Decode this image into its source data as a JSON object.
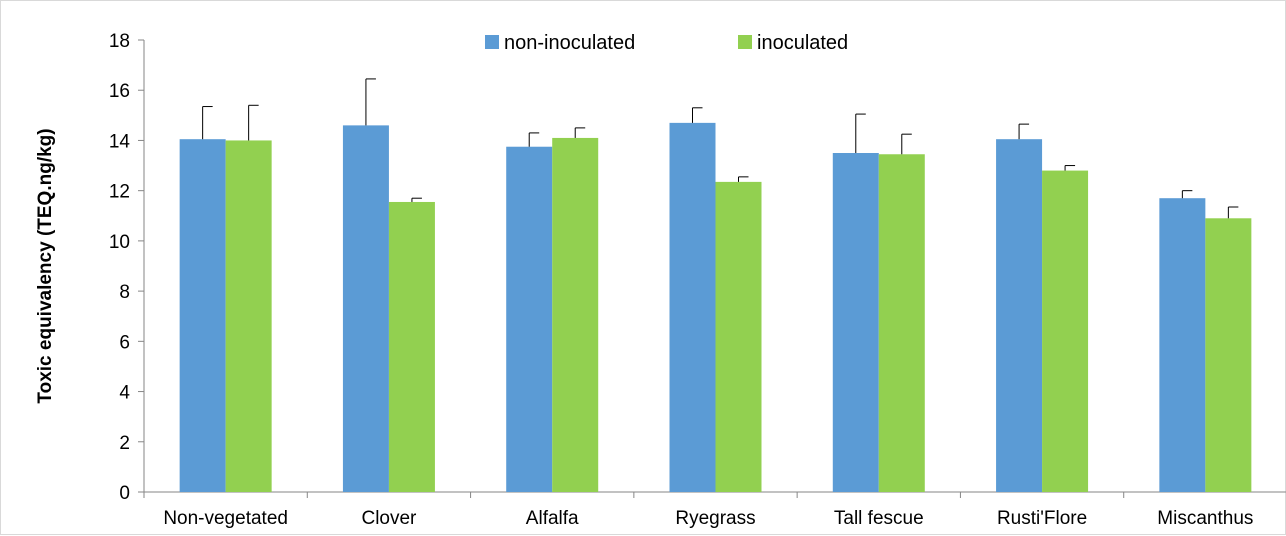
{
  "chart_data": {
    "type": "bar",
    "title": "",
    "xlabel": "",
    "ylabel": "Toxic equivalency (TEQ.ng/kg)",
    "ylim": [
      0,
      18
    ],
    "yticks": [
      0,
      2,
      4,
      6,
      8,
      10,
      12,
      14,
      16,
      18
    ],
    "grid": false,
    "legend_position": "top-center",
    "error_bars": true,
    "categories": [
      "Non-vegetated",
      "Clover",
      "Alfalfa",
      "Ryegrass",
      "Tall fescue",
      "Rusti'Flore",
      "Miscanthus"
    ],
    "series": [
      {
        "name": "non-inoculated",
        "color": "#5b9bd5",
        "values": [
          14.05,
          14.6,
          13.75,
          14.7,
          13.5,
          14.05,
          11.7
        ],
        "error": [
          1.3,
          1.85,
          0.55,
          0.6,
          1.55,
          0.6,
          0.3
        ]
      },
      {
        "name": "inoculated",
        "color": "#92d050",
        "values": [
          14.0,
          11.55,
          14.1,
          12.35,
          13.45,
          12.8,
          10.9
        ],
        "error": [
          1.4,
          0.15,
          0.4,
          0.2,
          0.8,
          0.2,
          0.45
        ]
      }
    ]
  }
}
